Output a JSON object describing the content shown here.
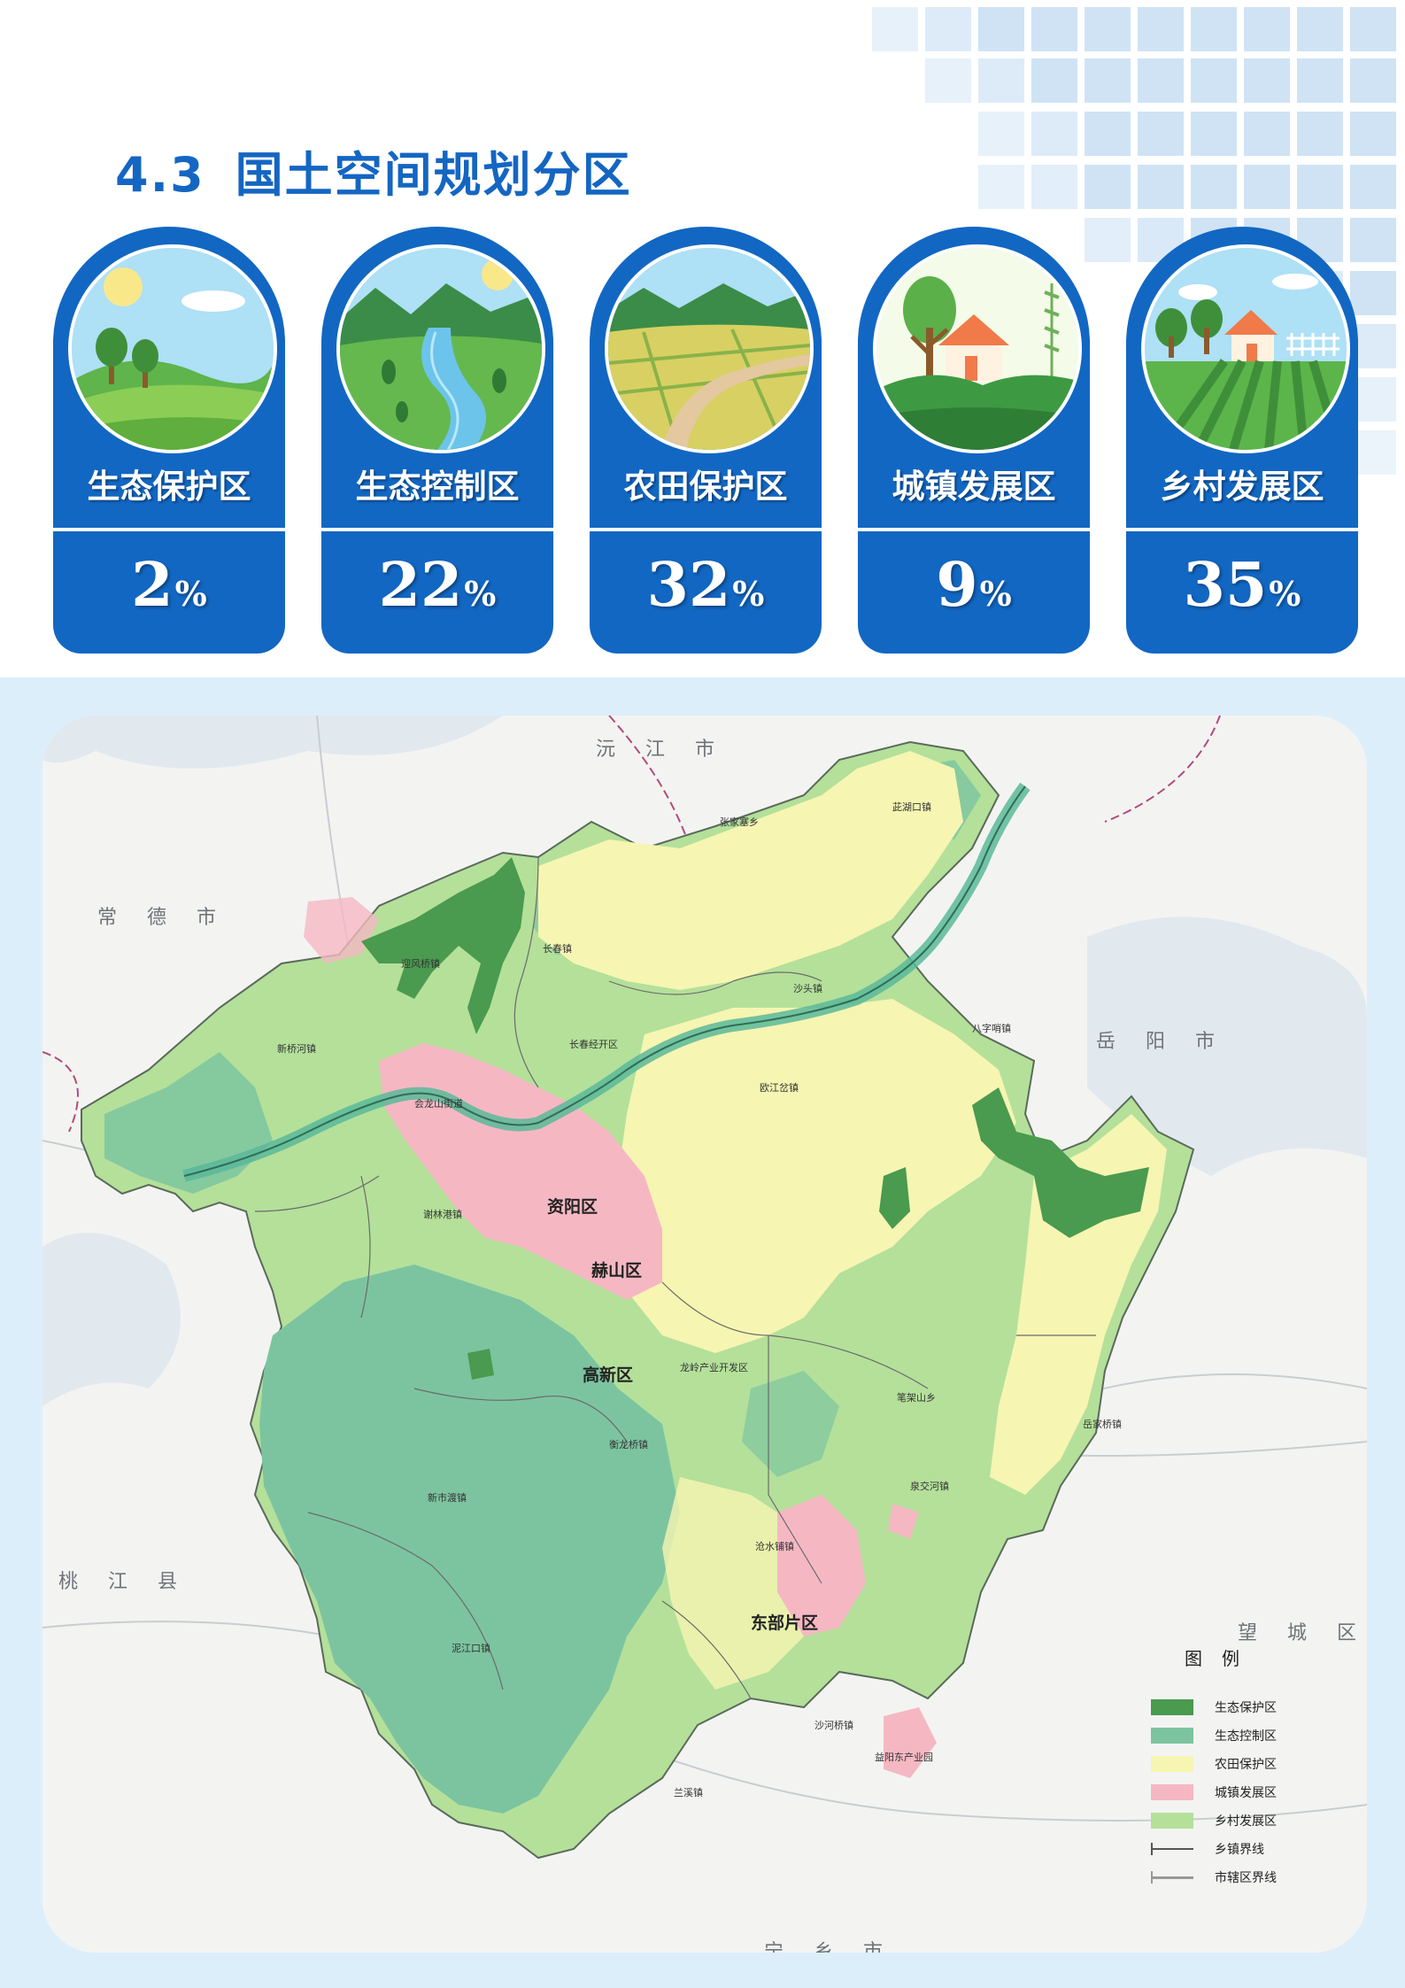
{
  "header": {
    "section_number": "4.3",
    "title": "国土空间规划分区"
  },
  "zones": [
    {
      "label": "生态保护区",
      "value": "2",
      "unit": "%",
      "icon": "meadow-trees-icon"
    },
    {
      "label": "生态控制区",
      "value": "22",
      "unit": "%",
      "icon": "river-valley-icon"
    },
    {
      "label": "农田保护区",
      "value": "32",
      "unit": "%",
      "icon": "farmland-road-icon"
    },
    {
      "label": "城镇发展区",
      "value": "9",
      "unit": "%",
      "icon": "town-house-icon"
    },
    {
      "label": "乡村发展区",
      "value": "35",
      "unit": "%",
      "icon": "village-field-icon"
    }
  ],
  "map": {
    "surrounding_regions": {
      "north": "沅江市",
      "northwest": "常德市",
      "east": "岳阳市",
      "west": "桃江县",
      "southeast": "望城区",
      "south": "宁乡市"
    },
    "districts": {
      "ziyang": "资阳区",
      "heshan": "赫山区",
      "gaoxin": "高新区",
      "dongbu": "东部片区"
    },
    "towns": [
      "长春镇",
      "迎风桥镇",
      "新桥河镇",
      "张家塞乡",
      "茈湖口镇",
      "沙头镇",
      "长春经开区",
      "八字哨镇",
      "欧江岔镇",
      "会龙山街道",
      "谢林港镇",
      "龙岭产业开发区",
      "泉交河镇",
      "笔架山乡",
      "岳家桥镇",
      "衡龙桥镇",
      "新市渡镇",
      "沧水铺镇",
      "泥江口镇",
      "兰溪镇",
      "益阳东产业园",
      "沙河桥镇"
    ]
  },
  "legend": {
    "title": "图例",
    "items": [
      {
        "label": "生态保护区",
        "color": "#4a9a4f",
        "kind": "fill"
      },
      {
        "label": "生态控制区",
        "color": "#7cc4a0",
        "kind": "fill"
      },
      {
        "label": "农田保护区",
        "color": "#f6f5b2",
        "kind": "fill"
      },
      {
        "label": "城镇发展区",
        "color": "#f5b8c3",
        "kind": "fill"
      },
      {
        "label": "乡村发展区",
        "color": "#b4e09a",
        "kind": "fill"
      },
      {
        "label": "乡镇界线",
        "color": "#555555",
        "kind": "line"
      },
      {
        "label": "市辖区界线",
        "color": "#999999",
        "kind": "line"
      }
    ]
  },
  "colors": {
    "brand_blue": "#1267c3",
    "title_blue": "#1466c2",
    "map_background": "#ddeefb"
  }
}
